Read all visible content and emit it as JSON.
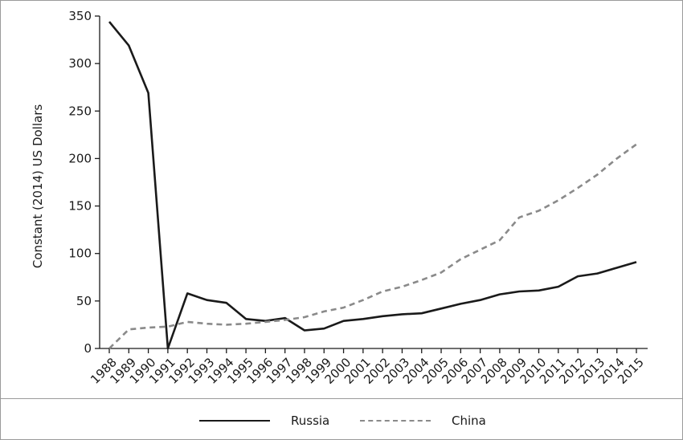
{
  "chart_data": {
    "type": "line",
    "title": "",
    "xlabel": "",
    "ylabel": "Constant (2014) US Dollars",
    "ylim": [
      0,
      350
    ],
    "yticks": [
      0,
      50,
      100,
      150,
      200,
      250,
      300,
      350
    ],
    "grid": false,
    "legend_position": "bottom",
    "categories": [
      "1988",
      "1989",
      "1990",
      "1991",
      "1992",
      "1993",
      "1994",
      "1995",
      "1996",
      "1997",
      "1998",
      "1999",
      "2000",
      "2001",
      "2002",
      "2003",
      "2004",
      "2005",
      "2006",
      "2007",
      "2008",
      "2009",
      "2010",
      "2011",
      "2012",
      "2013",
      "2014",
      "2015"
    ],
    "series": [
      {
        "name": "Russia",
        "style": "solid",
        "color": "#1a1a1a",
        "values": [
          344,
          319,
          269,
          0,
          58,
          51,
          48,
          31,
          29,
          32,
          19,
          21,
          29,
          31,
          34,
          36,
          37,
          42,
          47,
          51,
          57,
          60,
          61,
          65,
          76,
          79,
          85,
          91
        ]
      },
      {
        "name": "China",
        "style": "dashed",
        "color": "#8a8a8a",
        "values": [
          0,
          20,
          22,
          23,
          28,
          26,
          25,
          26,
          28,
          30,
          33,
          39,
          43,
          51,
          60,
          65,
          72,
          80,
          94,
          104,
          114,
          138,
          145,
          156,
          169,
          183,
          200,
          215
        ]
      }
    ]
  }
}
